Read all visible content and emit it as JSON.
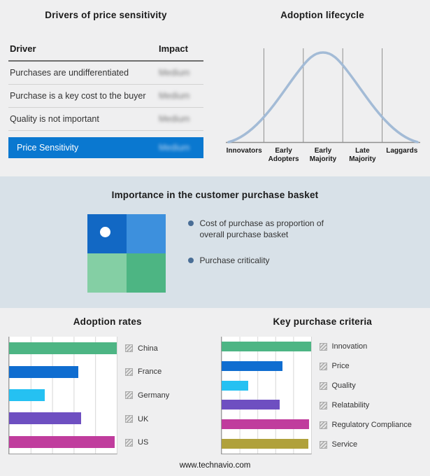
{
  "drivers": {
    "title": "Drivers of price sensitivity",
    "col_driver": "Driver",
    "col_impact": "Impact",
    "rows": [
      {
        "driver": "Purchases are undifferentiated",
        "impact": "Medium"
      },
      {
        "driver": "Purchase is a key cost to the buyer",
        "impact": "Medium"
      },
      {
        "driver": "Quality is not important",
        "impact": "Medium"
      }
    ],
    "highlight": {
      "driver": "Price Sensitivity",
      "impact": "Medium"
    },
    "highlight_color": "#0a78d0"
  },
  "lifecycle": {
    "title": "Adoption lifecycle",
    "curve_color": "#a3bbd6",
    "stages": [
      {
        "label": "Innovators"
      },
      {
        "label": "Early Adopters"
      },
      {
        "label": "Early Majority"
      },
      {
        "label": "Late Majority"
      },
      {
        "label": "Laggards"
      }
    ]
  },
  "basket": {
    "title": "Importance in the customer purchase basket",
    "bullets": [
      "Cost of purchase as proportion of overall purchase basket",
      "Purchase criticality"
    ],
    "quadrant_colors": {
      "top_left": "#1268c4",
      "top_right": "#3d90dd",
      "bottom_left": "#84cfa4",
      "bottom_right": "#4db583"
    }
  },
  "adoption": {
    "title": "Adoption rates",
    "items": [
      {
        "label": "China",
        "value": 100,
        "color": "#4db584"
      },
      {
        "label": "France",
        "value": 64,
        "color": "#0f6dd0"
      },
      {
        "label": "Germany",
        "value": 33,
        "color": "#25c1f2"
      },
      {
        "label": "UK",
        "value": 67,
        "color": "#6e4fc1"
      },
      {
        "label": "US",
        "value": 98,
        "color": "#c03c9d"
      }
    ]
  },
  "criteria": {
    "title": "Key purchase criteria",
    "items": [
      {
        "label": "Innovation",
        "value": 100,
        "color": "#4db584"
      },
      {
        "label": "Price",
        "value": 68,
        "color": "#0f6dd0"
      },
      {
        "label": "Quality",
        "value": 30,
        "color": "#25c1f2"
      },
      {
        "label": "Relatability",
        "value": 65,
        "color": "#6e4fc1"
      },
      {
        "label": "Regulatory Compliance",
        "value": 98,
        "color": "#c03c9d"
      },
      {
        "label": "Service",
        "value": 97,
        "color": "#b0a13b"
      }
    ]
  },
  "footer": {
    "url": "www.technavio.com"
  },
  "chart_data": [
    {
      "type": "table",
      "title": "Drivers of price sensitivity",
      "columns": [
        "Driver",
        "Impact"
      ],
      "rows": [
        [
          "Purchases are undifferentiated",
          "Medium"
        ],
        [
          "Purchase is a key cost to the buyer",
          "Medium"
        ],
        [
          "Quality is not important",
          "Medium"
        ],
        [
          "Price Sensitivity",
          "Medium"
        ]
      ],
      "note": "Impact values are blurred in the source image"
    },
    {
      "type": "line",
      "title": "Adoption lifecycle",
      "categories": [
        "Innovators",
        "Early Adopters",
        "Early Majority",
        "Late Majority",
        "Laggards"
      ],
      "values": [
        8,
        45,
        100,
        45,
        8
      ],
      "shape": "bell curve with vertical stage dividers",
      "ylim": [
        0,
        100
      ]
    },
    {
      "type": "bar",
      "orientation": "horizontal",
      "title": "Adoption rates",
      "categories": [
        "China",
        "France",
        "Germany",
        "UK",
        "US"
      ],
      "values": [
        100,
        64,
        33,
        67,
        98
      ],
      "xlim": [
        0,
        100
      ],
      "grid": true,
      "legend_position": "right",
      "note": "no numeric axis labels shown; values estimated as % of plot width"
    },
    {
      "type": "bar",
      "orientation": "horizontal",
      "title": "Key purchase criteria",
      "categories": [
        "Innovation",
        "Price",
        "Quality",
        "Relatability",
        "Regulatory Compliance",
        "Service"
      ],
      "values": [
        100,
        68,
        30,
        65,
        98,
        97
      ],
      "xlim": [
        0,
        100
      ],
      "grid": true,
      "legend_position": "right",
      "note": "no numeric axis labels shown; values estimated as % of plot width"
    }
  ]
}
